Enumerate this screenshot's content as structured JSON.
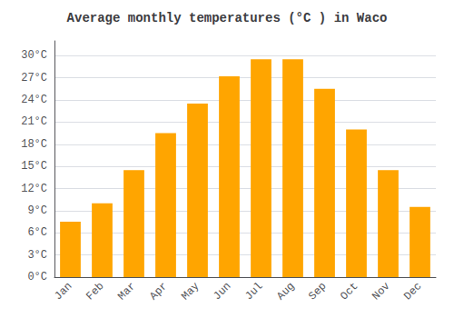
{
  "chart_data": {
    "type": "bar",
    "title": "Average monthly temperatures (°C ) in Waco",
    "categories": [
      "Jan",
      "Feb",
      "Mar",
      "Apr",
      "May",
      "Jun",
      "Jul",
      "Aug",
      "Sep",
      "Oct",
      "Nov",
      "Dec"
    ],
    "values": [
      7.5,
      10.0,
      14.5,
      19.5,
      23.5,
      27.2,
      29.5,
      29.5,
      25.5,
      20.0,
      14.5,
      9.5
    ],
    "color": "#FFA500",
    "ylim": [
      0,
      32
    ],
    "yticks": [
      {
        "value": 0,
        "label": "0°C"
      },
      {
        "value": 3,
        "label": "3°C"
      },
      {
        "value": 6,
        "label": "6°C"
      },
      {
        "value": 9,
        "label": "9°C"
      },
      {
        "value": 12,
        "label": "12°C"
      },
      {
        "value": 15,
        "label": "15°C"
      },
      {
        "value": 18,
        "label": "18°C"
      },
      {
        "value": 21,
        "label": "21°C"
      },
      {
        "value": 24,
        "label": "24°C"
      },
      {
        "value": 27,
        "label": "27°C"
      },
      {
        "value": 30,
        "label": "30°C"
      }
    ],
    "grid": true
  }
}
